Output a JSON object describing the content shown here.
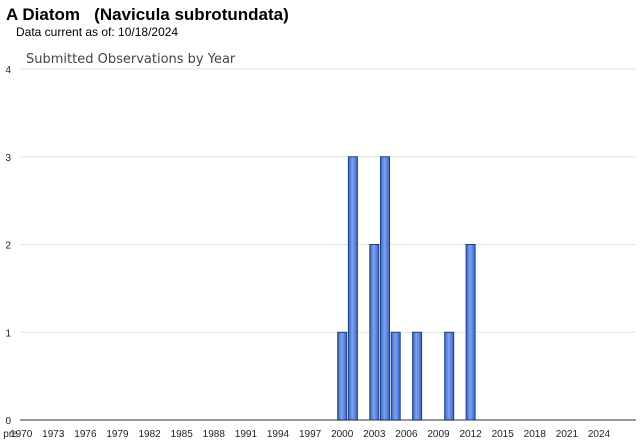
{
  "header": {
    "species": "A Diatom   (Navicula subrotundata)",
    "data_current_label": "Data current as of: 10/18/2024"
  },
  "colors": {
    "bar_fill": "#4a78d6",
    "bar_light": "#7ea2ee",
    "bar_stroke": "#1d3f86",
    "grid": "#e2e2e2"
  },
  "chart_data": {
    "type": "bar",
    "title": "Submitted Observations by Year",
    "xlabel": "",
    "ylabel": "",
    "ylim": [
      0,
      4
    ],
    "yticks": [
      0,
      1,
      2,
      3,
      4
    ],
    "grid": true,
    "categories_first": "pre",
    "year_range": [
      1970,
      2024
    ],
    "x_tick_labels": [
      "pre",
      "1970",
      "1973",
      "1976",
      "1979",
      "1982",
      "1985",
      "1988",
      "1991",
      "1994",
      "1997",
      "2000",
      "2003",
      "2006",
      "2009",
      "2012",
      "2015",
      "2018",
      "2021",
      "2024"
    ],
    "bars": [
      {
        "year": 2000,
        "value": 1
      },
      {
        "year": 2001,
        "value": 3
      },
      {
        "year": 2003,
        "value": 2
      },
      {
        "year": 2004,
        "value": 3
      },
      {
        "year": 2005,
        "value": 1
      },
      {
        "year": 2007,
        "value": 1
      },
      {
        "year": 2010,
        "value": 1
      },
      {
        "year": 2012,
        "value": 2
      }
    ]
  }
}
